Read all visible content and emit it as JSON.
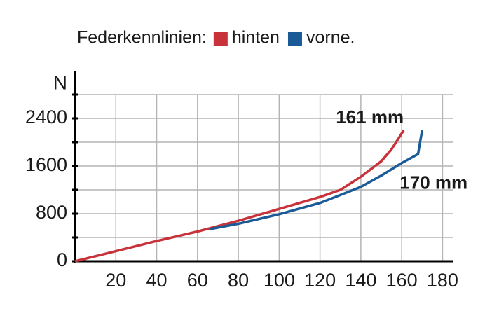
{
  "chart_data": {
    "type": "line",
    "title": "Federkennlinien:",
    "y_label": "N",
    "series": [
      {
        "name": "hinten",
        "color": "#c8323a",
        "x": [
          0,
          20,
          40,
          60,
          80,
          100,
          120,
          130,
          140,
          150,
          155,
          161
        ],
        "values": [
          0,
          170,
          340,
          500,
          680,
          880,
          1080,
          1200,
          1420,
          1680,
          1880,
          2200
        ]
      },
      {
        "name": "vorne.",
        "color": "#1a5a96",
        "x": [
          66,
          80,
          100,
          120,
          140,
          150,
          160,
          168,
          170
        ],
        "values": [
          540,
          630,
          790,
          980,
          1250,
          1440,
          1650,
          1800,
          2200
        ]
      }
    ],
    "annotations": [
      {
        "text": "161 mm",
        "x": 161,
        "y": 2400
      },
      {
        "text": "170 mm",
        "x": 170,
        "y": 1300
      }
    ],
    "xlim": [
      0,
      185
    ],
    "xticks": [
      20,
      40,
      60,
      80,
      100,
      120,
      140,
      160,
      180
    ],
    "ylim": [
      0,
      3200
    ],
    "yticks": [
      0,
      800,
      1600,
      2400
    ],
    "minor_yticks": [
      400,
      1200,
      2000,
      2800
    ],
    "grid": true
  }
}
